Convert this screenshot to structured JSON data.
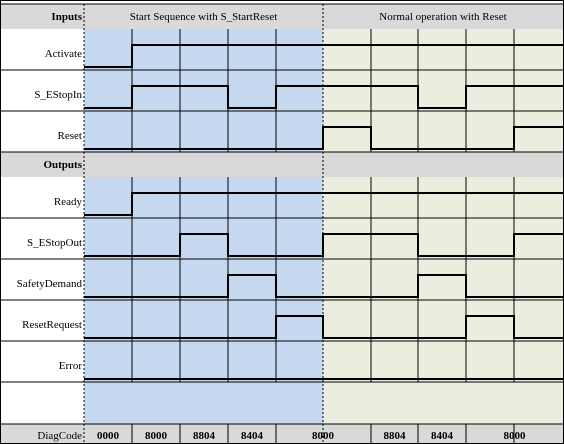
{
  "phases": [
    {
      "label": "Start Sequence with S_StartReset",
      "bg": "#c6d8f0"
    },
    {
      "label": "Normal operation with Reset",
      "bg": "#ebeedf"
    }
  ],
  "colors": {
    "section_header": "#d9d9d9",
    "grid": "#000000",
    "signal": "#000000"
  },
  "sections": [
    {
      "header": "Inputs",
      "signals": [
        {
          "name": "Activate",
          "levels": [
            0,
            1,
            1,
            1,
            1,
            1,
            1,
            1,
            1,
            1
          ]
        },
        {
          "name": "S_EStopIn",
          "levels": [
            0,
            1,
            1,
            0,
            1,
            1,
            1,
            0,
            1,
            1
          ]
        },
        {
          "name": "Reset",
          "levels": [
            0,
            0,
            0,
            0,
            0,
            1,
            0,
            0,
            0,
            1
          ]
        }
      ]
    },
    {
      "header": "Outputs",
      "signals": [
        {
          "name": "Ready",
          "levels": [
            0,
            1,
            1,
            1,
            1,
            1,
            1,
            1,
            1,
            1
          ]
        },
        {
          "name": "S_EStopOut",
          "levels": [
            0,
            0,
            1,
            0,
            0,
            1,
            1,
            0,
            0,
            1
          ]
        },
        {
          "name": "SafetyDemand",
          "levels": [
            0,
            0,
            0,
            1,
            0,
            0,
            0,
            1,
            0,
            0
          ]
        },
        {
          "name": "ResetRequest",
          "levels": [
            0,
            0,
            0,
            0,
            1,
            0,
            0,
            0,
            1,
            0
          ]
        },
        {
          "name": "Error",
          "levels": [
            0,
            0,
            0,
            0,
            0,
            0,
            0,
            0,
            0,
            0
          ]
        }
      ]
    }
  ],
  "diag": {
    "label": "DiagCode",
    "codes": [
      "0000",
      "8000",
      "8804",
      "8404",
      "8000",
      "8804",
      "8404",
      "8000"
    ]
  }
}
